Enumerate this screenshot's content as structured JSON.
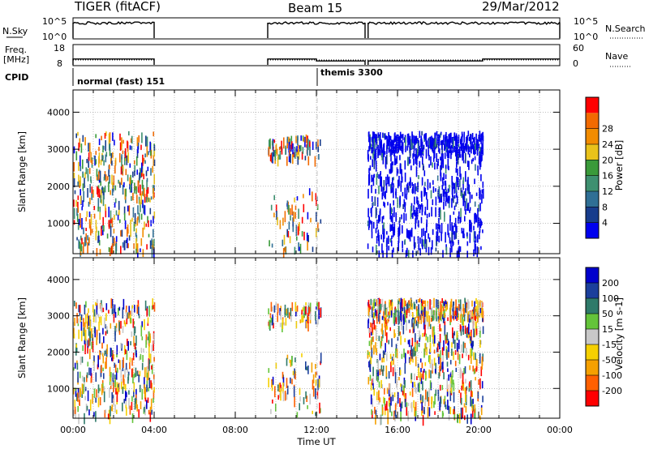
{
  "header": {
    "station": "TIGER (fitACF)",
    "beam": "Beam 15",
    "date": "29/Mar/2012"
  },
  "strip_labels": {
    "nsky": "N.Sky",
    "nsky_ticks": [
      "10^5",
      "10^0"
    ],
    "nsearch": "N.Search",
    "nsearch_ticks": [
      "10^5",
      "10^0"
    ],
    "freq": "Freq.",
    "freq_unit": "[MHz]",
    "freq_ticks": [
      "18",
      "8"
    ],
    "nave": "Nave",
    "nave_ticks": [
      "60",
      "0"
    ],
    "cpid": "CPID"
  },
  "cpid_modes": [
    {
      "name": "normal (fast) 151",
      "start_hour": 0.0,
      "end_hour": 12.0
    },
    {
      "name": "themis 3300",
      "start_hour": 12.0,
      "end_hour": 24.0
    }
  ],
  "time_axis": {
    "label": "Time UT",
    "ticks": [
      "00:00",
      "04:00",
      "08:00",
      "12:00",
      "16:00",
      "20:00",
      "00:00"
    ]
  },
  "colors": {
    "power": [
      "#0000ee",
      "#173c8c",
      "#2f6f95",
      "#3e9070",
      "#3a9a3a",
      "#e9c21a",
      "#f28c00",
      "#f26a00",
      "#ff0000"
    ],
    "velocity": [
      "#0000cc",
      "#1b3f9c",
      "#2f7a6a",
      "#64c43a",
      "#c8c8c8",
      "#f5d000",
      "#f5a000",
      "#ff6000",
      "#ff0000"
    ]
  },
  "chart_data": [
    {
      "type": "line",
      "title": "N.Sky / N.Search",
      "yscale": "log",
      "ylim": [
        1,
        100000
      ],
      "xlim": [
        0,
        24
      ],
      "series": [
        {
          "name": "N.Sky",
          "style": "solid",
          "segments": [
            [
              0.0,
              4.0
            ],
            [
              9.6,
              14.4
            ],
            [
              14.55,
              24.0
            ]
          ]
        }
      ]
    },
    {
      "type": "line",
      "title": "Freq. [MHz] / Nave",
      "ylim": [
        8,
        18
      ],
      "xlim": [
        0,
        24
      ],
      "series": [
        {
          "name": "Freq.",
          "style": "solid",
          "points": [
            [
              0.0,
              11
            ],
            [
              4.0,
              11
            ],
            [
              9.6,
              11
            ],
            [
              12.0,
              10
            ],
            [
              14.4,
              10
            ],
            [
              20.2,
              11
            ],
            [
              24.0,
              11
            ]
          ]
        },
        {
          "name": "Nave",
          "style": "dotted",
          "points": [
            [
              0.0,
              8
            ],
            [
              4.0,
              8
            ],
            [
              9.6,
              8
            ],
            [
              24.0,
              8
            ]
          ]
        }
      ]
    },
    {
      "type": "heatmap",
      "quantity": "Power",
      "colorbar_label": "Power [dB]",
      "colorbar_ticks": [
        4,
        8,
        12,
        16,
        20,
        24,
        28
      ],
      "ylabel": "Slant Range [km]",
      "yticks": [
        1000,
        2000,
        3000,
        4000
      ],
      "ylim": [
        180,
        4600
      ],
      "xlabel": "Time UT",
      "xlim": [
        0,
        24
      ],
      "data_periods_hours": [
        [
          0.0,
          4.0
        ],
        [
          9.6,
          12.2
        ],
        [
          14.5,
          20.2
        ]
      ],
      "dominant_range_km": [
        200,
        3500
      ]
    },
    {
      "type": "heatmap",
      "quantity": "Velocity",
      "colorbar_label": "Velocity [m s-1]",
      "colorbar_ticks": [
        200,
        100,
        50,
        15,
        -15,
        -50,
        -100,
        -200
      ],
      "ylabel": "Slant Range [km]",
      "yticks": [
        1000,
        2000,
        3000,
        4000
      ],
      "ylim": [
        180,
        4600
      ],
      "xlabel": "Time UT",
      "xlim": [
        0,
        24
      ],
      "data_periods_hours": [
        [
          0.0,
          4.0
        ],
        [
          9.6,
          12.2
        ],
        [
          14.5,
          20.2
        ]
      ],
      "dominant_range_km": [
        200,
        3500
      ]
    }
  ]
}
